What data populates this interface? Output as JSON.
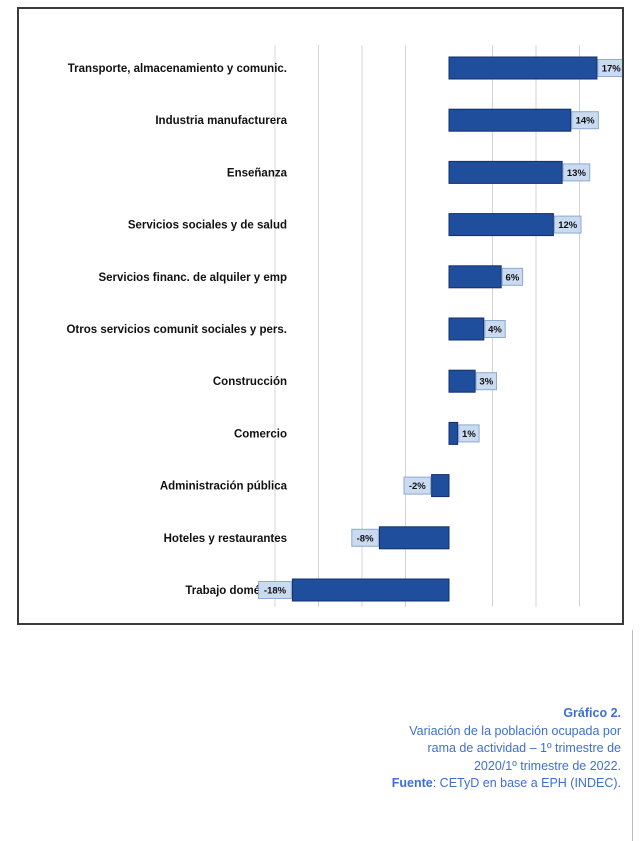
{
  "chart_data": {
    "type": "bar",
    "orientation": "horizontal",
    "categories": [
      "Transporte, almacenamiento y comunic.",
      "Industria manufacturera",
      "Enseñanza",
      "Servicios sociales y de salud",
      "Servicios financ. de alquiler y emp",
      "Otros servicios comunit sociales y pers.",
      "Construcción",
      "Comercio",
      "Administración pública",
      "Hoteles y restaurantes",
      "Trabajo doméstico"
    ],
    "values": [
      17,
      14,
      13,
      12,
      6,
      4,
      3,
      1,
      -2,
      -8,
      -18
    ],
    "value_labels": [
      "17%",
      "14%",
      "13%",
      "12%",
      "6%",
      "4%",
      "3%",
      "1%",
      "-2%",
      "-8%",
      "-18%"
    ],
    "xlim": [
      -20,
      20
    ],
    "grid": true,
    "bar_color": "#1f4e9c",
    "label_box_color": "#c9daf1"
  },
  "caption": {
    "title": "Gráfico 2.",
    "lines": [
      "Variación de la población ocupada por",
      "rama de actividad – 1º trimestre de",
      "2020/1º trimestre de 2022."
    ],
    "source_label": "Fuente",
    "source_text": ": CETyD en base a EPH (INDEC).",
    "color": "#3f6fd0"
  }
}
